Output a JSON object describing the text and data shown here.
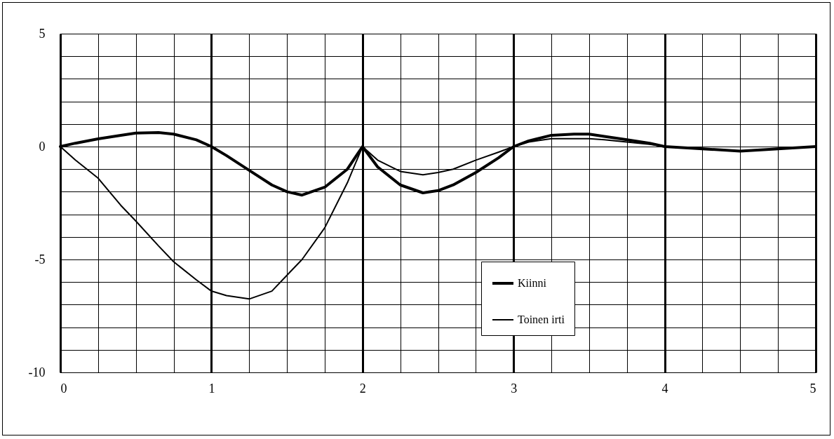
{
  "chart_data": {
    "type": "line",
    "x": [
      0,
      0.1,
      0.25,
      0.4,
      0.5,
      0.65,
      0.75,
      0.9,
      1,
      1.1,
      1.25,
      1.4,
      1.5,
      1.6,
      1.75,
      1.9,
      2,
      2.1,
      2.25,
      2.4,
      2.5,
      2.6,
      2.75,
      2.9,
      3,
      3.1,
      3.25,
      3.4,
      3.5,
      3.6,
      3.75,
      3.9,
      4,
      4.25,
      4.5,
      4.75,
      5
    ],
    "series": [
      {
        "name": "Kiinni",
        "color": "#000000",
        "values": [
          0,
          0.15,
          0.34,
          0.5,
          0.6,
          0.62,
          0.55,
          0.3,
          0,
          -0.4,
          -1.05,
          -1.7,
          -2,
          -2.15,
          -1.8,
          -1,
          0,
          -0.9,
          -1.7,
          -2.05,
          -1.95,
          -1.7,
          -1.15,
          -0.5,
          0,
          0.25,
          0.5,
          0.55,
          0.55,
          0.45,
          0.3,
          0.15,
          0,
          -0.1,
          -0.2,
          -0.1,
          0
        ]
      },
      {
        "name": "Toinen irti",
        "color": "#000000",
        "values": [
          0,
          -0.6,
          -1.4,
          -2.6,
          -3.3,
          -4.4,
          -5.1,
          -5.9,
          -6.4,
          -6.6,
          -6.75,
          -6.4,
          -5.7,
          -5,
          -3.6,
          -1.6,
          0,
          -0.6,
          -1.1,
          -1.25,
          -1.15,
          -1,
          -0.6,
          -0.25,
          0,
          0.2,
          0.35,
          0.35,
          0.35,
          0.3,
          0.2,
          0.1,
          0,
          -0.1,
          -0.2,
          -0.1,
          0
        ]
      }
    ],
    "xlim": [
      0,
      5
    ],
    "xticks": [
      0,
      {
        "value": 0.25,
        "label": null
      },
      {
        "value": 0.5,
        "label": null
      },
      {
        "value": 0.75,
        "label": null
      },
      1,
      {
        "value": 1.25,
        "label": null
      },
      {
        "value": 1.5,
        "label": null
      },
      {
        "value": 1.75,
        "label": null
      },
      2,
      {
        "value": 2.25,
        "label": null
      },
      {
        "value": 2.5,
        "label": null
      },
      {
        "value": 2.75,
        "label": null
      },
      3,
      {
        "value": 3.25,
        "label": null
      },
      {
        "value": 3.5,
        "label": null
      },
      {
        "value": 3.75,
        "label": null
      },
      4,
      {
        "value": 4.25,
        "label": null
      },
      {
        "value": 4.5,
        "label": null
      },
      {
        "value": 4.75,
        "label": null
      },
      5
    ],
    "ylim": [
      -10,
      5
    ],
    "yticks": [
      -10,
      {
        "value": -9,
        "label": null
      },
      {
        "value": -8,
        "label": null
      },
      {
        "value": -7,
        "label": null
      },
      {
        "value": -6,
        "label": null
      },
      -5,
      {
        "value": -4,
        "label": null
      },
      {
        "value": -3,
        "label": null
      },
      {
        "value": -2,
        "label": null
      },
      {
        "value": -1,
        "label": null
      },
      0,
      {
        "value": 1,
        "label": null
      },
      {
        "value": 2,
        "label": null
      },
      {
        "value": 3,
        "label": null
      },
      {
        "value": 4,
        "label": null
      },
      5
    ],
    "grid": true,
    "legend": "bottom",
    "marker": "none",
    "line_style": "solid"
  }
}
